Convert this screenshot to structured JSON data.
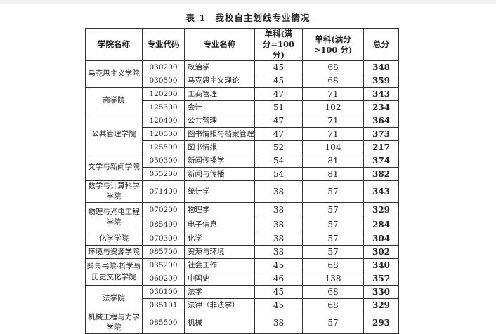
{
  "title": "表 1　我校自主划线专业情况",
  "headers": [
    "学院名称",
    "专业代码",
    "专业名称",
    "单科(满分=100 分)",
    "单科(满分>100 分)",
    "总分"
  ],
  "colleges": [
    {
      "name": "马克思主义学院",
      "rows": [
        [
          "030200",
          "政治学",
          "45",
          "68",
          "348"
        ],
        [
          "030500",
          "马克思主义理论",
          "45",
          "68",
          "359"
        ]
      ]
    },
    {
      "name": "商学院",
      "rows": [
        [
          "120200",
          "工商管理",
          "47",
          "71",
          "343"
        ],
        [
          "125300",
          "会计",
          "51",
          "102",
          "234"
        ]
      ]
    },
    {
      "name": "公共管理学院",
      "rows": [
        [
          "120400",
          "公共管理",
          "47",
          "71",
          "364"
        ],
        [
          "120500",
          "图书情报与档案管理",
          "47",
          "71",
          "373"
        ],
        [
          "125500",
          "图书情报",
          "52",
          "104",
          "217"
        ]
      ]
    },
    {
      "name": "文学与新闻学院",
      "rows": [
        [
          "050300",
          "新闻传播学",
          "54",
          "81",
          "374"
        ],
        [
          "055200",
          "新闻与传播",
          "54",
          "81",
          "382"
        ]
      ]
    },
    {
      "name": "数学与计算科学学院",
      "rows": [
        [
          "071400",
          "统计学",
          "38",
          "57",
          "343"
        ]
      ]
    },
    {
      "name": "物理与光电工程学院",
      "rows": [
        [
          "070200",
          "物理学",
          "38",
          "57",
          "329"
        ],
        [
          "085400",
          "电子信息",
          "38",
          "57",
          "284"
        ]
      ]
    },
    {
      "name": "化学学院",
      "rows": [
        [
          "070300",
          "化学",
          "38",
          "57",
          "304"
        ]
      ]
    },
    {
      "name": "环境与资源学院",
      "rows": [
        [
          "085700",
          "资源与环境",
          "38",
          "57",
          "302"
        ]
      ]
    },
    {
      "name": "碧泉书院·哲学与历史文化学院",
      "rows": [
        [
          "035200",
          "社会工作",
          "45",
          "68",
          "340"
        ],
        [
          "060200",
          "中国史",
          "46",
          "138",
          "357"
        ]
      ]
    },
    {
      "name": "法学院",
      "rows": [
        [
          "030100",
          "法学",
          "45",
          "68",
          "330"
        ],
        [
          "035101",
          "法律（非法学）",
          "45",
          "68",
          "329"
        ]
      ]
    },
    {
      "name": "机械工程与力学学院",
      "rows": [
        [
          "085500",
          "机械",
          "38",
          "57",
          "293"
        ]
      ]
    }
  ]
}
